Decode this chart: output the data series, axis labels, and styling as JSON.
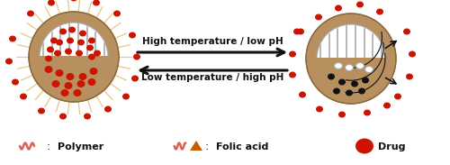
{
  "fig_width": 5.0,
  "fig_height": 1.83,
  "dpi": 100,
  "bg_color": "#ffffff",
  "arrow1_text": "High temperature / low pH",
  "arrow2_text": "Low temperature / high pH",
  "legend_polymer_label": "Polymer",
  "legend_folic_label": "Folic acid",
  "legend_drug_label": "Drug",
  "tan_color": "#b89060",
  "tan_dark": "#8a6838",
  "red_color": "#cc1500",
  "salmon_color": "#e06050",
  "black_color": "#111111",
  "orange_color": "#c85a00",
  "gray_light": "#d8d8d8",
  "gray_mid": "#aaaaaa",
  "spike_color": "#e8c880",
  "arrow_color": "#111111",
  "white": "#ffffff"
}
